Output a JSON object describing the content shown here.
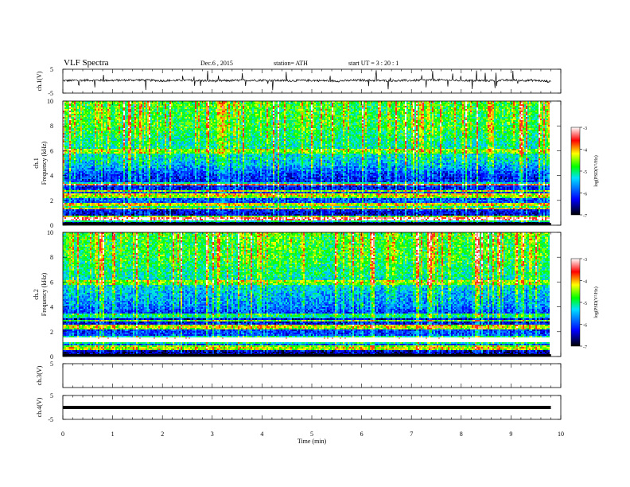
{
  "header": {
    "title": "VLF  Spectra",
    "date": "Dec.6   , 2015",
    "station": "station= ATH",
    "start": "start  UT  =    3  : 20 : 1"
  },
  "chart_data": [
    {
      "type": "line",
      "name": "ch1-waveform",
      "ylabel": "ch.1(V)",
      "ylim": [
        -5,
        5
      ],
      "yticks": [
        "5",
        "-5"
      ],
      "x_range_min": [
        0,
        9.8
      ],
      "x": [
        0,
        0.5,
        1,
        1.5,
        2,
        2.5,
        3,
        3.5,
        4,
        4.5,
        5,
        5.5,
        6,
        6.5,
        7,
        7.5,
        8,
        8.5,
        9,
        9.5,
        9.8
      ],
      "values": [
        0.2,
        0.4,
        0.3,
        0.5,
        0.2,
        0.4,
        0.1,
        0.3,
        0.4,
        0.2,
        0.3,
        0.1,
        0.4,
        0.2,
        0.3,
        0.5,
        0.3,
        0.2,
        0.4,
        0.3,
        -0.2
      ]
    },
    {
      "type": "heatmap",
      "name": "ch1-spectrogram",
      "ylabel": "ch.1\nFrequency  (kHz)",
      "ylim": [
        0,
        10
      ],
      "yticks": [
        "0",
        "2",
        "4",
        "6",
        "8",
        "10"
      ],
      "x_range_min": [
        0,
        9.8
      ],
      "colorbar": {
        "label": "log(PSD(V²/Hz)",
        "range": [
          -7,
          -3
        ],
        "ticks": [
          "-3",
          "-4",
          "-5",
          "-6",
          "-7"
        ],
        "colors": [
          "#000000",
          "#0000ff",
          "#00ffff",
          "#00ff00",
          "#ffff00",
          "#ff0000",
          "#ffffff"
        ]
      },
      "frequency_profile_kHz": [
        0,
        1,
        2,
        3,
        4,
        5,
        6,
        7,
        8,
        9,
        10
      ],
      "mean_logPSD": [
        -6.9,
        -6.4,
        -6.0,
        -6.3,
        -6.2,
        -5.5,
        -5.3,
        -5.1,
        -4.9,
        -4.9,
        -4.8
      ]
    },
    {
      "type": "heatmap",
      "name": "ch2-spectrogram",
      "ylabel": "ch.2\nFrequency  (kHz)",
      "ylim": [
        0,
        10
      ],
      "yticks": [
        "0",
        "2",
        "4",
        "6",
        "8",
        "10"
      ],
      "x_range_min": [
        0,
        9.8
      ],
      "colorbar": {
        "label": "log(PSD(V²/Hz)",
        "range": [
          -7,
          -3
        ],
        "ticks": [
          "-3",
          "-4",
          "-5",
          "-6",
          "-7"
        ],
        "colors": [
          "#000000",
          "#0000ff",
          "#00ffff",
          "#00ff00",
          "#ffff00",
          "#ff0000",
          "#ffffff"
        ]
      },
      "frequency_profile_kHz": [
        0,
        1,
        2,
        3,
        4,
        5,
        6,
        7,
        8,
        9,
        10
      ],
      "mean_logPSD": [
        -6.9,
        -6.0,
        -6.1,
        -6.5,
        -5.8,
        -5.6,
        -5.3,
        -5.1,
        -4.9,
        -4.9,
        -4.8
      ]
    },
    {
      "type": "line",
      "name": "ch3-waveform",
      "ylabel": "ch.3(V)",
      "ylim": [
        -5,
        5
      ],
      "yticks": [
        "5"
      ],
      "x_range_min": [
        0,
        9.8
      ],
      "x": [],
      "values": []
    },
    {
      "type": "line",
      "name": "ch4-waveform",
      "ylabel": "ch.4(V)",
      "ylim": [
        -5,
        5
      ],
      "yticks": [
        "5",
        "-5"
      ],
      "x_range_min": [
        0,
        9.8
      ],
      "x": [
        0,
        9.8
      ],
      "values": [
        0,
        0
      ]
    }
  ],
  "xaxis": {
    "label": "Time  (min)",
    "ticks": [
      "0",
      "1",
      "2",
      "3",
      "4",
      "5",
      "6",
      "7",
      "8",
      "9",
      "10"
    ],
    "range": [
      0,
      10
    ]
  }
}
